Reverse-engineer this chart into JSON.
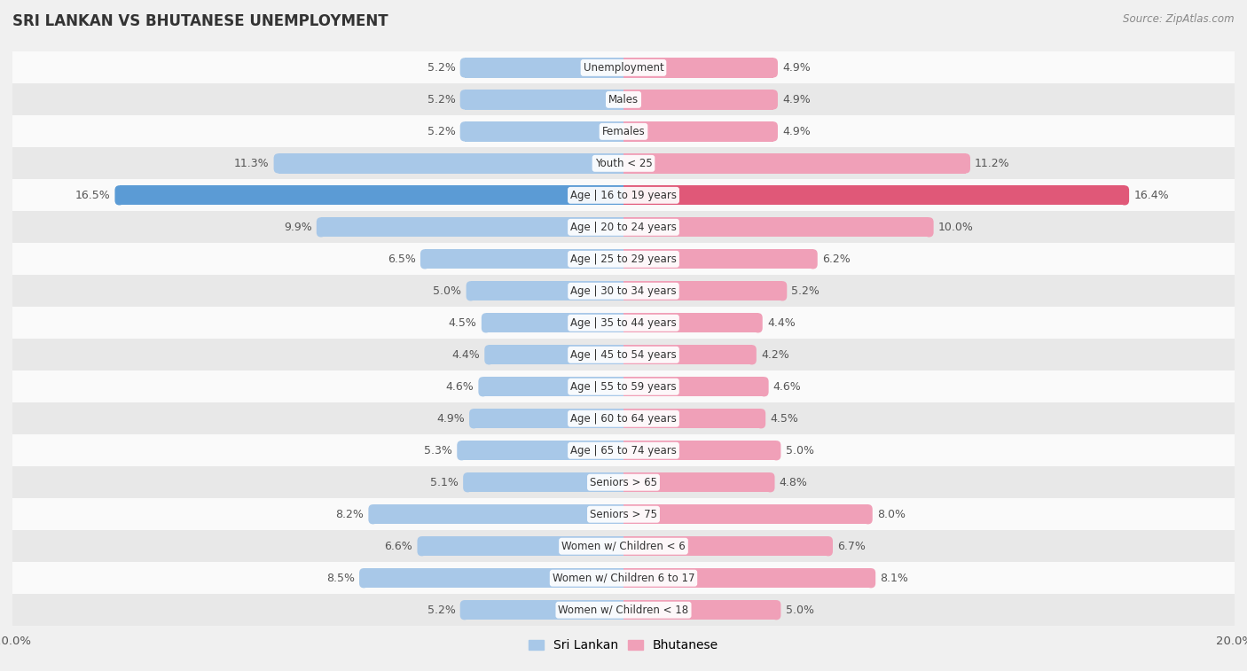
{
  "title": "SRI LANKAN VS BHUTANESE UNEMPLOYMENT",
  "source": "Source: ZipAtlas.com",
  "categories": [
    "Unemployment",
    "Males",
    "Females",
    "Youth < 25",
    "Age | 16 to 19 years",
    "Age | 20 to 24 years",
    "Age | 25 to 29 years",
    "Age | 30 to 34 years",
    "Age | 35 to 44 years",
    "Age | 45 to 54 years",
    "Age | 55 to 59 years",
    "Age | 60 to 64 years",
    "Age | 65 to 74 years",
    "Seniors > 65",
    "Seniors > 75",
    "Women w/ Children < 6",
    "Women w/ Children 6 to 17",
    "Women w/ Children < 18"
  ],
  "sri_lankan": [
    5.2,
    5.2,
    5.2,
    11.3,
    16.5,
    9.9,
    6.5,
    5.0,
    4.5,
    4.4,
    4.6,
    4.9,
    5.3,
    5.1,
    8.2,
    6.6,
    8.5,
    5.2
  ],
  "bhutanese": [
    4.9,
    4.9,
    4.9,
    11.2,
    16.4,
    10.0,
    6.2,
    5.2,
    4.4,
    4.2,
    4.6,
    4.5,
    5.0,
    4.8,
    8.0,
    6.7,
    8.1,
    5.0
  ],
  "sri_lankan_color": "#a8c8e8",
  "bhutanese_color": "#f0a0b8",
  "highlight_sri_lankan_color": "#5b9bd5",
  "highlight_bhutanese_color": "#e05878",
  "background_color": "#f0f0f0",
  "row_color_light": "#fafafa",
  "row_color_dark": "#e8e8e8",
  "axis_limit": 20.0,
  "bar_height": 0.62,
  "label_fontsize": 9.0,
  "category_fontsize": 8.5,
  "title_fontsize": 12,
  "source_fontsize": 8.5,
  "legend_fontsize": 10
}
